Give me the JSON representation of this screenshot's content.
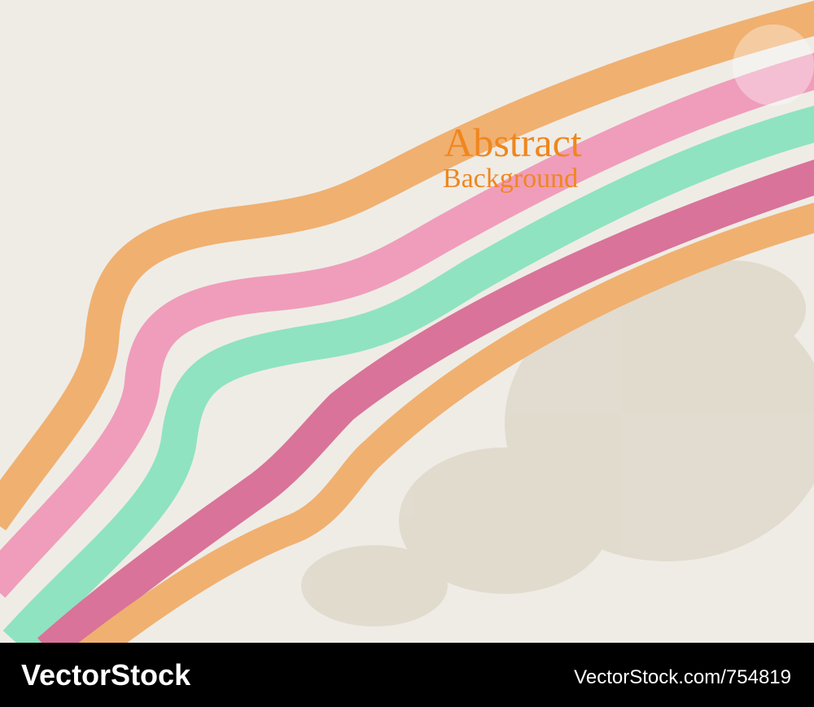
{
  "title": {
    "line1": "Abstract",
    "line2": "Background"
  },
  "footer": {
    "brand": "VectorStock",
    "id": "VectorStock.com/754819"
  }
}
